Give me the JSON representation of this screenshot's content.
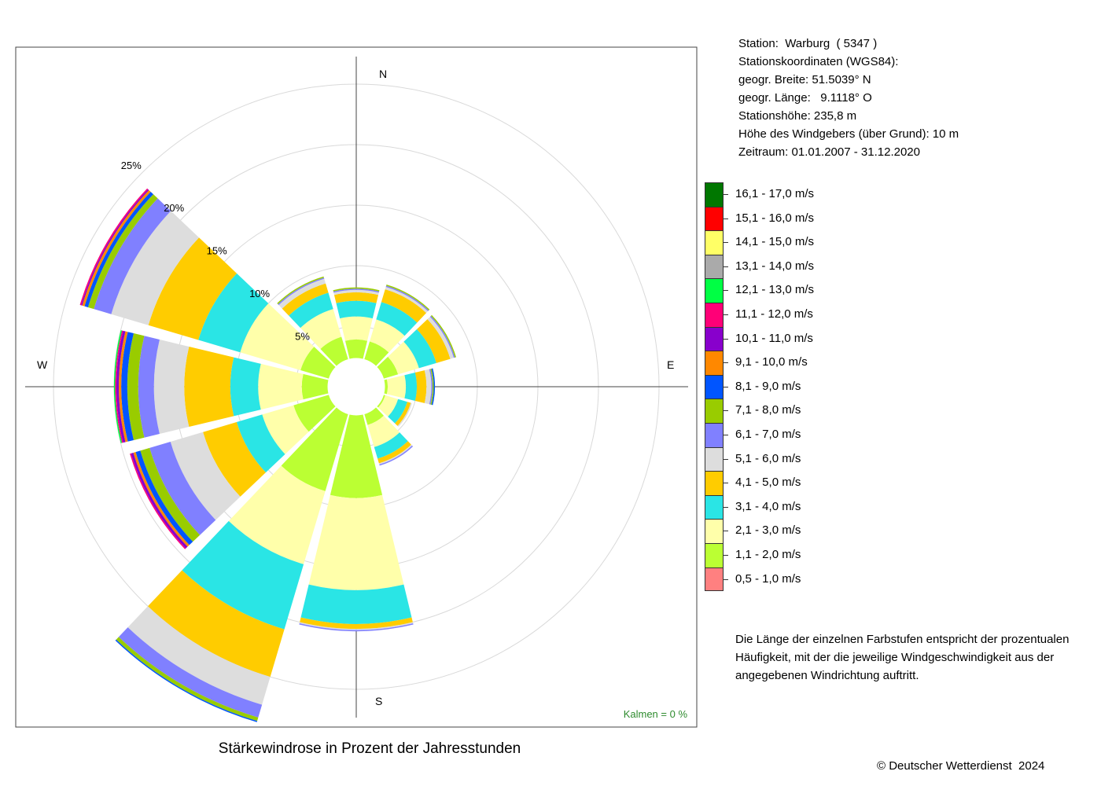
{
  "station": {
    "line1": "Station:  Warburg  ( 5347 )",
    "line2": "Stationskoordinaten (WGS84):",
    "line3": "geogr. Breite: 51.5039° N",
    "line4": "geogr. Länge:   9.1118° O",
    "line5": "Stationshöhe: 235,8 m",
    "line6": "Höhe des Windgebers (über Grund): 10 m",
    "line7": "Zeitraum: 01.01.2007 - 31.12.2020"
  },
  "legend": [
    {
      "label": "16,1 - 17,0 m/s",
      "color": "#007700"
    },
    {
      "label": "15,1 - 16,0 m/s",
      "color": "#ff0000"
    },
    {
      "label": "14,1 - 15,0 m/s",
      "color": "#ffff66"
    },
    {
      "label": "13,1 - 14,0 m/s",
      "color": "#aaaaaa"
    },
    {
      "label": "12,1 - 13,0 m/s",
      "color": "#00ff44"
    },
    {
      "label": "11,1 - 12,0 m/s",
      "color": "#ff0077"
    },
    {
      "label": "10,1 - 11,0 m/s",
      "color": "#8800cc"
    },
    {
      "label": "9,1 - 10,0 m/s",
      "color": "#ff8800"
    },
    {
      "label": "8,1 - 9,0 m/s",
      "color": "#0055ff"
    },
    {
      "label": "7,1 - 8,0 m/s",
      "color": "#99cc00"
    },
    {
      "label": "6,1 - 7,0 m/s",
      "color": "#8080ff"
    },
    {
      "label": "5,1 - 6,0 m/s",
      "color": "#dddddd"
    },
    {
      "label": "4,1 - 5,0 m/s",
      "color": "#ffcc00"
    },
    {
      "label": "3,1 - 4,0 m/s",
      "color": "#2ae5e5"
    },
    {
      "label": "2,1 - 3,0 m/s",
      "color": "#ffffaa"
    },
    {
      "label": "1,1 - 2,0 m/s",
      "color": "#bbff33"
    },
    {
      "label": "0,5 - 1,0 m/s",
      "color": "#ff8080"
    }
  ],
  "note": "Die Länge der einzelnen Farbstufen entspricht der prozentualen Häufigkeit, mit der die jeweilige Windgeschwindigkeit aus der angegebenen Windrichtung auftritt.",
  "caption": "Stärkewindrose in Prozent der Jahresstunden",
  "copyright": "© Deutscher Wetterdienst  2024",
  "calm_label": "Kalmen  =  0 %",
  "chart_data": {
    "type": "wind-rose",
    "title": "Stärkewindrose in Prozent der Jahresstunden",
    "directions": [
      "N",
      "30°",
      "60°",
      "E",
      "120°",
      "150°",
      "S",
      "210°",
      "240°",
      "W",
      "300°",
      "330°"
    ],
    "direction_degrees": [
      0,
      30,
      60,
      90,
      120,
      150,
      180,
      210,
      240,
      270,
      300,
      330
    ],
    "compass_labels": [
      "N",
      "E",
      "S",
      "W"
    ],
    "radial_unit": "%",
    "radial_ticks": [
      5,
      10,
      15,
      20,
      25
    ],
    "radial_tick_labels": [
      "5%",
      "10%",
      "15%",
      "20%",
      "25%"
    ],
    "speed_classes": [
      "0,5 - 1,0 m/s",
      "1,1 - 2,0 m/s",
      "2,1 - 3,0 m/s",
      "3,1 - 4,0 m/s",
      "4,1 - 5,0 m/s",
      "5,1 - 6,0 m/s",
      "6,1 - 7,0 m/s",
      "7,1 - 8,0 m/s",
      "8,1 - 9,0 m/s",
      "9,1 - 10,0 m/s",
      "10,1 - 11,0 m/s",
      "11,1 - 12,0 m/s",
      "12,1 - 13,0 m/s",
      "13,1 - 14,0 m/s",
      "14,1 - 15,0 m/s",
      "15,1 - 16,0 m/s",
      "16,1 - 17,0 m/s"
    ],
    "colors": [
      "#ff8080",
      "#bbff33",
      "#ffffaa",
      "#2ae5e5",
      "#ffcc00",
      "#dddddd",
      "#8080ff",
      "#99cc00",
      "#0055ff",
      "#ff8800",
      "#8800cc",
      "#ff0077",
      "#00ff44",
      "#aaaaaa",
      "#ffff66",
      "#ff0000",
      "#007700"
    ],
    "core_radius_pct": 0.5,
    "sectors": [
      {
        "direction": 0,
        "cumulative": [
          1.5,
          3.9,
          5.8,
          7.1,
          7.8,
          8.0,
          8.1,
          8.2,
          8.2
        ]
      },
      {
        "direction": 30,
        "cumulative": [
          1.5,
          3.9,
          5.8,
          7.3,
          8.4,
          8.6,
          8.7,
          8.8,
          8.8
        ]
      },
      {
        "direction": 60,
        "cumulative": [
          1.5,
          3.6,
          5.4,
          6.9,
          8.1,
          8.4,
          8.5,
          8.6,
          8.6
        ]
      },
      {
        "direction": 90,
        "cumulative": [
          1.5,
          2.6,
          4.1,
          5.0,
          5.8,
          6.2,
          6.3,
          6.4,
          6.5
        ]
      },
      {
        "direction": 120,
        "cumulative": [
          1.5,
          2.5,
          3.6,
          4.4,
          4.7,
          4.8,
          4.8
        ]
      },
      {
        "direction": 150,
        "cumulative": [
          1.5,
          3.3,
          5.2,
          6.2,
          6.6,
          6.7,
          6.8
        ]
      },
      {
        "direction": 180,
        "cumulative": [
          1.5,
          9.2,
          16.8,
          19.6,
          20.0,
          20.1,
          20.2,
          20.2
        ]
      },
      {
        "direction": 210,
        "cumulative": [
          1.5,
          9.0,
          15.3,
          20.9,
          25.0,
          27.4,
          28.5,
          28.8,
          28.9
        ]
      },
      {
        "direction": 240,
        "cumulative": [
          1.5,
          5.4,
          8.1,
          10.3,
          13.2,
          16.0,
          17.8,
          18.6,
          19.0,
          19.2,
          19.4,
          19.5
        ]
      },
      {
        "direction": 270,
        "cumulative": [
          1.5,
          4.5,
          8.1,
          10.4,
          14.2,
          16.7,
          18.0,
          18.9,
          19.4,
          19.6,
          19.8,
          19.9,
          20.0
        ]
      },
      {
        "direction": 300,
        "cumulative": [
          1.5,
          4.8,
          10.0,
          13.6,
          17.9,
          21.1,
          22.6,
          23.1,
          23.4,
          23.6,
          23.7,
          23.8
        ]
      },
      {
        "direction": 330,
        "cumulative": [
          1.5,
          4.3,
          6.7,
          8.1,
          8.9,
          9.3,
          9.4,
          9.5,
          9.5
        ]
      }
    ],
    "calm_pct": 0
  }
}
